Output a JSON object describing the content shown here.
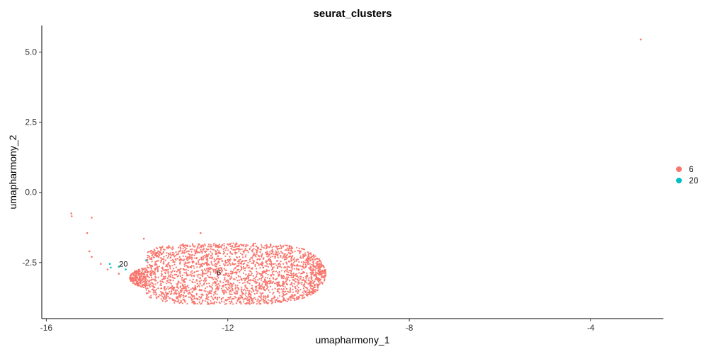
{
  "chart_data": {
    "type": "scatter",
    "title": "seurat_clusters",
    "xlabel": "umapharmony_1",
    "ylabel": "umapharmony_2",
    "xlim": [
      -16.1,
      -2.4
    ],
    "ylim": [
      -4.5,
      5.95
    ],
    "x_ticks": [
      -16,
      -12,
      -8,
      -4
    ],
    "y_ticks": [
      -2.5,
      0.0,
      2.5,
      5.0
    ],
    "x_tick_labels": [
      "-16",
      "-12",
      "-8",
      "-4"
    ],
    "y_tick_labels": [
      "-2.5",
      "0.0",
      "2.5",
      "5.0"
    ],
    "grid": false,
    "legend_position": "right",
    "series": [
      {
        "name": "6",
        "color": "#F8766D",
        "label_position": {
          "x": -12.2,
          "y": -2.85
        },
        "cloud": {
          "center_x": -12.0,
          "center_y": -2.9,
          "spread_x": 1.35,
          "spread_y": 0.42,
          "count": 2800
        },
        "points": [
          {
            "x": -15.45,
            "y": -0.75
          },
          {
            "x": -15.44,
            "y": -0.85
          },
          {
            "x": -15.0,
            "y": -0.9
          },
          {
            "x": -15.1,
            "y": -1.45
          },
          {
            "x": -15.05,
            "y": -2.1
          },
          {
            "x": -15.0,
            "y": -2.3
          },
          {
            "x": -14.8,
            "y": -2.55
          },
          {
            "x": -14.65,
            "y": -2.75
          },
          {
            "x": -14.4,
            "y": -2.9
          },
          {
            "x": -13.85,
            "y": -1.65
          },
          {
            "x": -12.6,
            "y": -1.45
          },
          {
            "x": -2.9,
            "y": 5.45
          }
        ]
      },
      {
        "name": "20",
        "color": "#00BFC4",
        "label_position": {
          "x": -14.3,
          "y": -2.55
        },
        "points": [
          {
            "x": -14.6,
            "y": -2.55
          },
          {
            "x": -14.58,
            "y": -2.68
          },
          {
            "x": -13.8,
            "y": -2.42
          },
          {
            "x": -14.25,
            "y": -2.75
          },
          {
            "x": -14.4,
            "y": -2.65
          }
        ]
      }
    ]
  }
}
